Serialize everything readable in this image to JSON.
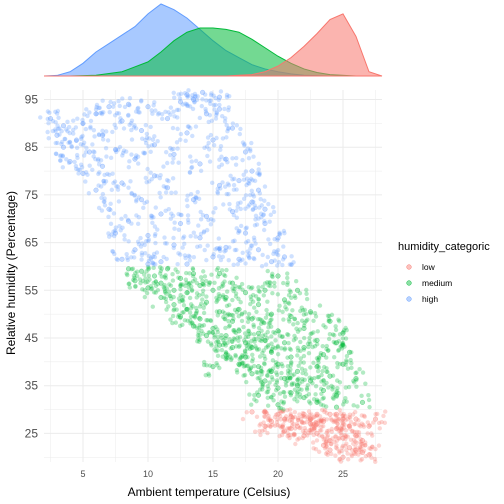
{
  "chart_data": {
    "type": "scatter",
    "marginal": "density",
    "xlabel": "Ambient temperature (Celsius)",
    "ylabel": "Relative humidity (Percentage)",
    "xlim": [
      2,
      28
    ],
    "ylim": [
      19,
      97
    ],
    "x_ticks": [
      5,
      10,
      15,
      20,
      25
    ],
    "y_ticks": [
      25,
      35,
      45,
      55,
      65,
      75,
      85,
      95
    ],
    "grid": true,
    "legend_title": "humidity_categoric",
    "legend_position": "right",
    "series": [
      {
        "name": "low",
        "color": "#F8766D",
        "humidity_range": [
          19,
          30
        ],
        "points": [
          [
            19.0,
            29.5
          ],
          [
            19.5,
            27.5
          ],
          [
            20.0,
            29.0
          ],
          [
            20.5,
            25.5
          ],
          [
            21.0,
            28.5
          ],
          [
            21.5,
            26.5
          ],
          [
            22.0,
            29.0
          ],
          [
            22.0,
            24.5
          ],
          [
            22.5,
            27.0
          ],
          [
            23.0,
            29.0
          ],
          [
            23.0,
            25.0
          ],
          [
            23.5,
            27.5
          ],
          [
            24.0,
            29.0
          ],
          [
            24.0,
            23.5
          ],
          [
            24.5,
            26.0
          ],
          [
            25.0,
            28.0
          ],
          [
            25.0,
            24.0
          ],
          [
            25.5,
            22.0
          ],
          [
            25.5,
            26.5
          ],
          [
            26.0,
            28.0
          ],
          [
            26.0,
            24.5
          ],
          [
            26.5,
            21.0
          ],
          [
            26.5,
            23.5
          ],
          [
            27.0,
            26.5
          ],
          [
            27.5,
            28.0
          ],
          [
            24.0,
            21.5
          ],
          [
            23.0,
            27.0
          ],
          [
            21.0,
            26.0
          ],
          [
            18.0,
            29.5
          ],
          [
            27.0,
            20.5
          ],
          [
            22.5,
            28.0
          ],
          [
            25.0,
            20.0
          ],
          [
            20.5,
            28.0
          ],
          [
            23.5,
            22.5
          ],
          [
            24.5,
            29.0
          ],
          [
            26.0,
            21.5
          ],
          [
            19.0,
            26.5
          ]
        ],
        "density": {
          "x": [
            2,
            4,
            6,
            8,
            10,
            12,
            14,
            16,
            17,
            18,
            19,
            20,
            21,
            22,
            23,
            24,
            25,
            26,
            27,
            28
          ],
          "y": [
            0,
            0,
            0,
            0,
            0,
            0,
            0,
            0,
            0.005,
            0.01,
            0.03,
            0.07,
            0.13,
            0.21,
            0.3,
            0.4,
            0.44,
            0.28,
            0.03,
            0
          ]
        }
      },
      {
        "name": "medium",
        "color": "#00BA38",
        "humidity_range": [
          30,
          60
        ],
        "points": [
          [
            8.5,
            59.5
          ],
          [
            9.0,
            57.0
          ],
          [
            9.5,
            59.0
          ],
          [
            10.0,
            55.5
          ],
          [
            10.5,
            58.0
          ],
          [
            11.0,
            56.5
          ],
          [
            11.0,
            53.5
          ],
          [
            11.5,
            59.5
          ],
          [
            12.0,
            55.0
          ],
          [
            12.0,
            52.0
          ],
          [
            12.5,
            57.5
          ],
          [
            12.5,
            49.5
          ],
          [
            13.0,
            54.5
          ],
          [
            13.0,
            51.0
          ],
          [
            13.5,
            58.5
          ],
          [
            13.5,
            47.5
          ],
          [
            14.0,
            56.0
          ],
          [
            14.0,
            49.0
          ],
          [
            14.5,
            52.5
          ],
          [
            14.5,
            45.5
          ],
          [
            15.0,
            55.0
          ],
          [
            15.0,
            47.0
          ],
          [
            15.5,
            58.5
          ],
          [
            15.5,
            50.5
          ],
          [
            15.5,
            43.5
          ],
          [
            16.0,
            53.5
          ],
          [
            16.0,
            45.5
          ],
          [
            16.0,
            41.5
          ],
          [
            16.5,
            56.5
          ],
          [
            16.5,
            48.5
          ],
          [
            16.5,
            43.0
          ],
          [
            17.0,
            51.0
          ],
          [
            17.0,
            46.5
          ],
          [
            17.0,
            39.5
          ],
          [
            17.5,
            54.5
          ],
          [
            17.5,
            44.0
          ],
          [
            17.5,
            41.0
          ],
          [
            18.0,
            49.0
          ],
          [
            18.0,
            43.0
          ],
          [
            18.0,
            37.5
          ],
          [
            18.5,
            52.0
          ],
          [
            18.5,
            46.0
          ],
          [
            18.5,
            39.0
          ],
          [
            19.0,
            55.0
          ],
          [
            19.0,
            44.5
          ],
          [
            19.0,
            36.0
          ],
          [
            19.5,
            50.0
          ],
          [
            19.5,
            42.0
          ],
          [
            19.5,
            38.0
          ],
          [
            20.0,
            58.0
          ],
          [
            20.0,
            46.5
          ],
          [
            20.0,
            39.5
          ],
          [
            20.0,
            34.5
          ],
          [
            20.5,
            53.0
          ],
          [
            20.5,
            44.0
          ],
          [
            20.5,
            36.5
          ],
          [
            21.0,
            49.5
          ],
          [
            21.0,
            41.0
          ],
          [
            21.0,
            33.5
          ],
          [
            21.5,
            55.0
          ],
          [
            21.5,
            38.0
          ],
          [
            21.5,
            35.0
          ],
          [
            22.0,
            47.0
          ],
          [
            22.0,
            43.0
          ],
          [
            22.0,
            32.5
          ],
          [
            22.5,
            50.5
          ],
          [
            22.5,
            36.0
          ],
          [
            23.0,
            44.5
          ],
          [
            23.0,
            39.0
          ],
          [
            23.0,
            31.5
          ],
          [
            23.5,
            41.5
          ],
          [
            23.5,
            34.0
          ],
          [
            24.0,
            48.5
          ],
          [
            24.0,
            37.0
          ],
          [
            24.5,
            44.0
          ],
          [
            24.5,
            33.0
          ],
          [
            25.0,
            46.0
          ],
          [
            25.0,
            39.5
          ],
          [
            25.5,
            42.0
          ],
          [
            26.0,
            36.5
          ],
          [
            26.5,
            31.5
          ],
          [
            24.5,
            30.5
          ],
          [
            18.5,
            33.0
          ],
          [
            15.0,
            39.0
          ],
          [
            20.0,
            31.0
          ]
        ],
        "density": {
          "x": [
            2,
            4,
            6,
            8,
            10,
            11,
            12,
            13,
            14,
            15,
            16,
            17,
            18,
            19,
            20,
            21,
            22,
            23,
            24,
            26,
            28
          ],
          "y": [
            0,
            0,
            0.005,
            0.03,
            0.1,
            0.17,
            0.25,
            0.31,
            0.34,
            0.34,
            0.33,
            0.31,
            0.26,
            0.2,
            0.14,
            0.09,
            0.05,
            0.025,
            0.01,
            0,
            0
          ]
        }
      },
      {
        "name": "high",
        "color": "#619CFF",
        "humidity_range": [
          60,
          97
        ],
        "points": [
          [
            2.5,
            91.0
          ],
          [
            3.0,
            87.5
          ],
          [
            3.5,
            85.0
          ],
          [
            3.5,
            89.5
          ],
          [
            4.0,
            82.0
          ],
          [
            4.5,
            86.5
          ],
          [
            5.0,
            79.5
          ],
          [
            5.0,
            90.0
          ],
          [
            5.5,
            84.0
          ],
          [
            6.0,
            76.0
          ],
          [
            6.0,
            92.0
          ],
          [
            6.5,
            81.0
          ],
          [
            6.5,
            87.5
          ],
          [
            7.0,
            72.0
          ],
          [
            7.0,
            93.5
          ],
          [
            7.5,
            67.0
          ],
          [
            7.5,
            84.5
          ],
          [
            8.0,
            61.5
          ],
          [
            8.0,
            77.5
          ],
          [
            8.0,
            90.5
          ],
          [
            8.5,
            69.5
          ],
          [
            8.5,
            94.0
          ],
          [
            9.0,
            63.5
          ],
          [
            9.0,
            82.5
          ],
          [
            9.5,
            74.0
          ],
          [
            9.5,
            88.5
          ],
          [
            10.0,
            60.5
          ],
          [
            10.0,
            66.5
          ],
          [
            10.0,
            93.5
          ],
          [
            10.5,
            79.0
          ],
          [
            10.5,
            85.5
          ],
          [
            11.0,
            61.0
          ],
          [
            11.0,
            71.0
          ],
          [
            11.5,
            91.0
          ],
          [
            11.5,
            76.5
          ],
          [
            12.0,
            64.5
          ],
          [
            12.0,
            83.5
          ],
          [
            12.5,
            69.0
          ],
          [
            12.5,
            94.5
          ],
          [
            13.0,
            60.5
          ],
          [
            13.0,
            88.0
          ],
          [
            13.5,
            74.0
          ],
          [
            13.5,
            95.0
          ],
          [
            14.0,
            66.0
          ],
          [
            14.0,
            81.5
          ],
          [
            14.5,
            92.0
          ],
          [
            14.5,
            70.5
          ],
          [
            15.0,
            62.0
          ],
          [
            15.0,
            86.5
          ],
          [
            15.5,
            77.0
          ],
          [
            15.5,
            93.0
          ],
          [
            16.0,
            64.0
          ],
          [
            16.0,
            82.5
          ],
          [
            16.5,
            71.5
          ],
          [
            16.5,
            89.0
          ],
          [
            17.0,
            61.5
          ],
          [
            17.0,
            78.0
          ],
          [
            17.5,
            84.0
          ],
          [
            17.5,
            67.0
          ],
          [
            18.0,
            73.5
          ],
          [
            18.0,
            80.0
          ],
          [
            18.5,
            63.5
          ],
          [
            18.5,
            76.0
          ],
          [
            19.0,
            69.0
          ],
          [
            19.0,
            72.0
          ],
          [
            19.5,
            61.0
          ],
          [
            20.0,
            66.0
          ],
          [
            20.5,
            62.0
          ],
          [
            14.2,
            96.5
          ],
          [
            13.0,
            96.0
          ],
          [
            15.5,
            95.5
          ]
        ],
        "density": {
          "x": [
            2,
            3,
            4,
            5,
            6,
            7,
            8,
            9,
            10,
            11,
            12,
            13,
            14,
            15,
            16,
            17,
            18,
            19,
            20,
            21,
            22,
            24,
            26,
            28
          ],
          "y": [
            0,
            0.004,
            0.03,
            0.09,
            0.17,
            0.23,
            0.29,
            0.35,
            0.44,
            0.51,
            0.47,
            0.41,
            0.33,
            0.25,
            0.18,
            0.13,
            0.08,
            0.05,
            0.03,
            0.015,
            0.005,
            0,
            0,
            0
          ]
        }
      }
    ]
  }
}
